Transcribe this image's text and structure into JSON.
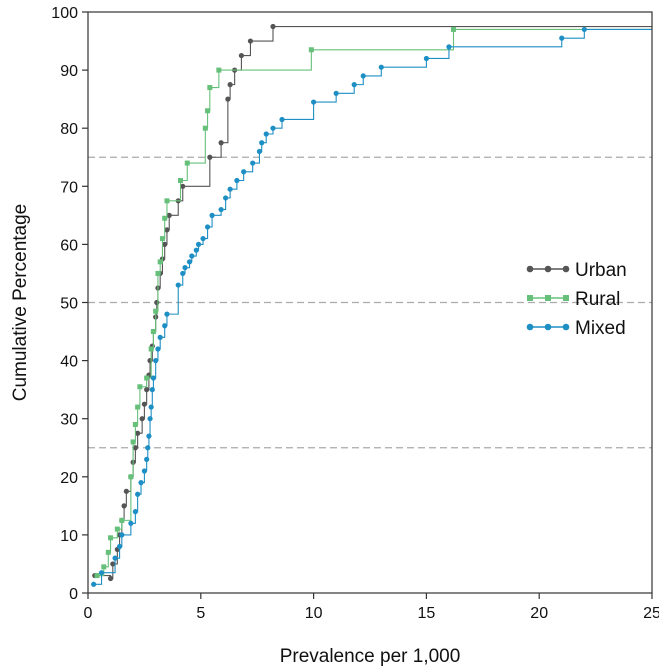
{
  "chart_data": {
    "type": "line",
    "step": true,
    "title": "",
    "xlabel": "Prevalence per 1,000",
    "ylabel": "Cumulative Percentage",
    "xlim": [
      0,
      25
    ],
    "ylim": [
      0,
      100
    ],
    "xticks": [
      0,
      5,
      10,
      15,
      20,
      25
    ],
    "yticks": [
      0,
      10,
      20,
      30,
      40,
      50,
      60,
      70,
      80,
      90,
      100
    ],
    "reference_lines_y": [
      25,
      50,
      75
    ],
    "grid": false,
    "legend_position": "right-middle",
    "series": [
      {
        "name": "Urban",
        "color": "#555555",
        "marker": "circle",
        "points": [
          [
            0.3,
            3
          ],
          [
            1.0,
            2.5
          ],
          [
            1.1,
            5
          ],
          [
            1.3,
            7.5
          ],
          [
            1.4,
            10
          ],
          [
            1.5,
            12.5
          ],
          [
            1.6,
            15
          ],
          [
            1.7,
            17.5
          ],
          [
            1.9,
            20
          ],
          [
            2.0,
            22.5
          ],
          [
            2.1,
            25
          ],
          [
            2.2,
            27.5
          ],
          [
            2.4,
            30
          ],
          [
            2.5,
            32.5
          ],
          [
            2.6,
            35
          ],
          [
            2.7,
            37.5
          ],
          [
            2.75,
            40
          ],
          [
            2.85,
            42.5
          ],
          [
            2.9,
            45
          ],
          [
            3.0,
            47.5
          ],
          [
            3.05,
            50
          ],
          [
            3.1,
            52.5
          ],
          [
            3.2,
            55
          ],
          [
            3.3,
            57.5
          ],
          [
            3.4,
            60
          ],
          [
            3.5,
            62.5
          ],
          [
            3.6,
            65
          ],
          [
            4.0,
            67.5
          ],
          [
            4.2,
            70
          ],
          [
            5.4,
            75
          ],
          [
            5.9,
            77.5
          ],
          [
            6.2,
            85
          ],
          [
            6.3,
            87.5
          ],
          [
            6.5,
            90
          ],
          [
            6.8,
            92.5
          ],
          [
            7.2,
            95
          ],
          [
            8.2,
            97.5
          ]
        ]
      },
      {
        "name": "Rural",
        "color": "#66c07a",
        "marker": "square",
        "points": [
          [
            0.4,
            3
          ],
          [
            0.7,
            4.5
          ],
          [
            0.9,
            7
          ],
          [
            1.0,
            9.5
          ],
          [
            1.3,
            11
          ],
          [
            1.5,
            12.5
          ],
          [
            1.9,
            20
          ],
          [
            2.0,
            26
          ],
          [
            2.1,
            29
          ],
          [
            2.2,
            32
          ],
          [
            2.3,
            35.5
          ],
          [
            2.6,
            37
          ],
          [
            2.8,
            42
          ],
          [
            2.9,
            45
          ],
          [
            3.0,
            48.5
          ],
          [
            3.1,
            55
          ],
          [
            3.2,
            57
          ],
          [
            3.3,
            61
          ],
          [
            3.4,
            64.5
          ],
          [
            3.5,
            67.5
          ],
          [
            4.1,
            71
          ],
          [
            4.4,
            74
          ],
          [
            5.2,
            80
          ],
          [
            5.3,
            83
          ],
          [
            5.4,
            87
          ],
          [
            5.8,
            90
          ],
          [
            9.9,
            93.5
          ],
          [
            16.2,
            97
          ]
        ]
      },
      {
        "name": "Mixed",
        "color": "#1e8fc4",
        "marker": "circle",
        "points": [
          [
            0.25,
            1.5
          ],
          [
            0.6,
            3.5
          ],
          [
            1.2,
            6
          ],
          [
            1.4,
            8
          ],
          [
            1.5,
            10
          ],
          [
            1.9,
            12
          ],
          [
            2.1,
            14
          ],
          [
            2.2,
            17
          ],
          [
            2.35,
            19
          ],
          [
            2.5,
            21
          ],
          [
            2.6,
            23
          ],
          [
            2.65,
            25
          ],
          [
            2.7,
            27
          ],
          [
            2.75,
            30
          ],
          [
            2.8,
            32
          ],
          [
            2.85,
            35
          ],
          [
            2.9,
            37
          ],
          [
            3.0,
            40
          ],
          [
            3.1,
            42
          ],
          [
            3.2,
            44
          ],
          [
            3.4,
            46
          ],
          [
            3.5,
            48
          ],
          [
            4.0,
            53
          ],
          [
            4.2,
            55
          ],
          [
            4.3,
            56
          ],
          [
            4.5,
            57
          ],
          [
            4.6,
            58
          ],
          [
            4.8,
            59
          ],
          [
            4.9,
            60
          ],
          [
            5.1,
            61
          ],
          [
            5.3,
            63
          ],
          [
            5.5,
            65
          ],
          [
            5.9,
            66
          ],
          [
            6.1,
            68
          ],
          [
            6.3,
            69.5
          ],
          [
            6.6,
            71
          ],
          [
            6.9,
            72.5
          ],
          [
            7.3,
            74
          ],
          [
            7.6,
            76
          ],
          [
            7.7,
            77.5
          ],
          [
            7.9,
            79
          ],
          [
            8.2,
            80
          ],
          [
            8.6,
            81.5
          ],
          [
            10.0,
            84.5
          ],
          [
            11.0,
            86
          ],
          [
            11.8,
            87.5
          ],
          [
            12.2,
            89
          ],
          [
            13.0,
            90.5
          ],
          [
            15.0,
            92
          ],
          [
            16.0,
            94
          ],
          [
            21.0,
            95.5
          ],
          [
            22.0,
            97
          ]
        ]
      }
    ]
  }
}
